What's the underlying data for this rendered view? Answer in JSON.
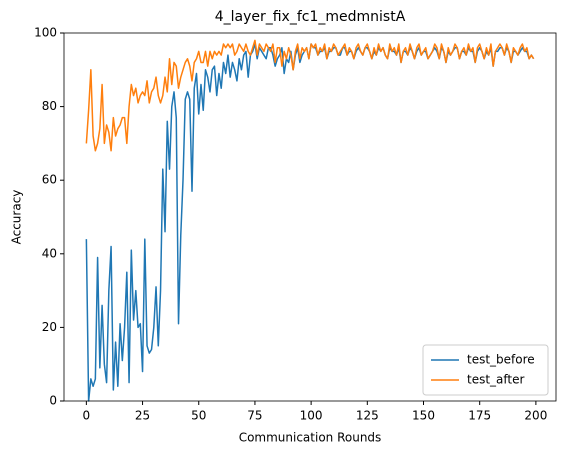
{
  "chart_data": {
    "type": "line",
    "title": "4_layer_fix_fc1_medmnistA",
    "xlabel": "Communication Rounds",
    "ylabel": "Accuracy",
    "x": [
      0,
      1,
      2,
      3,
      4,
      5,
      6,
      7,
      8,
      9,
      10,
      11,
      12,
      13,
      14,
      15,
      16,
      17,
      18,
      19,
      20,
      21,
      22,
      23,
      24,
      25,
      26,
      27,
      28,
      29,
      30,
      31,
      32,
      33,
      34,
      35,
      36,
      37,
      38,
      39,
      40,
      41,
      42,
      43,
      44,
      45,
      46,
      47,
      48,
      49,
      50,
      51,
      52,
      53,
      54,
      55,
      56,
      57,
      58,
      59,
      60,
      61,
      62,
      63,
      64,
      65,
      66,
      67,
      68,
      69,
      70,
      71,
      72,
      73,
      74,
      75,
      76,
      77,
      78,
      79,
      80,
      81,
      82,
      83,
      84,
      85,
      86,
      87,
      88,
      89,
      90,
      91,
      92,
      93,
      94,
      95,
      96,
      97,
      98,
      99,
      100,
      101,
      102,
      103,
      104,
      105,
      106,
      107,
      108,
      109,
      110,
      111,
      112,
      113,
      114,
      115,
      116,
      117,
      118,
      119,
      120,
      121,
      122,
      123,
      124,
      125,
      126,
      127,
      128,
      129,
      130,
      131,
      132,
      133,
      134,
      135,
      136,
      137,
      138,
      139,
      140,
      141,
      142,
      143,
      144,
      145,
      146,
      147,
      148,
      149,
      150,
      151,
      152,
      153,
      154,
      155,
      156,
      157,
      158,
      159,
      160,
      161,
      162,
      163,
      164,
      165,
      166,
      167,
      168,
      169,
      170,
      171,
      172,
      173,
      174,
      175,
      176,
      177,
      178,
      179,
      180,
      181,
      182,
      183,
      184,
      185,
      186,
      187,
      188,
      189,
      190,
      191,
      192,
      193,
      194,
      195,
      196,
      197,
      198,
      199
    ],
    "series": [
      {
        "name": "test_before",
        "color": "#1f77b4",
        "values": [
          44,
          0,
          6,
          4,
          6,
          39,
          9,
          26,
          10,
          5,
          30,
          42,
          3,
          16,
          4,
          21,
          11,
          20,
          35,
          5,
          41,
          22,
          30,
          20,
          21,
          8,
          44,
          15,
          13,
          14,
          20,
          31,
          15,
          30,
          63,
          46,
          76,
          63,
          80,
          84,
          77,
          21,
          45,
          60,
          82,
          84,
          82,
          57,
          85,
          89,
          78,
          86,
          79,
          90,
          88,
          84,
          90,
          91,
          83,
          89,
          85,
          92,
          89,
          94,
          88,
          92,
          90,
          87,
          93,
          90,
          94,
          95,
          88,
          94,
          95,
          97,
          93,
          96,
          95,
          94,
          93,
          96,
          96,
          94,
          91,
          93,
          94,
          96,
          89,
          93,
          92,
          95,
          90,
          94,
          96,
          92,
          94,
          95,
          96,
          93,
          97,
          96,
          96,
          94,
          95,
          95,
          96,
          93,
          95,
          95,
          96,
          96,
          94,
          94,
          96,
          96,
          94,
          95,
          95,
          93,
          95,
          96,
          95,
          94,
          96,
          96,
          95,
          93,
          95,
          94,
          96,
          95,
          96,
          94,
          93,
          96,
          95,
          95,
          94,
          96,
          92,
          95,
          95,
          94,
          96,
          95,
          93,
          95,
          96,
          94,
          95,
          95,
          93,
          94,
          95,
          96,
          95,
          93,
          96,
          95,
          92,
          95,
          94,
          95,
          96,
          96,
          93,
          95,
          95,
          94,
          96,
          95,
          95,
          92,
          95,
          96,
          95,
          93,
          95,
          94,
          96,
          91,
          95,
          95,
          96,
          96,
          94,
          96,
          95,
          92,
          95,
          95,
          94,
          95,
          96,
          95,
          95,
          93,
          94,
          93
        ]
      },
      {
        "name": "test_after",
        "color": "#ff7f0e",
        "values": [
          70,
          79,
          90,
          72,
          68,
          70,
          74,
          86,
          70,
          75,
          73,
          68,
          77,
          72,
          74,
          75,
          77,
          77,
          70,
          80,
          86,
          83,
          85,
          81,
          83,
          84,
          83,
          87,
          81,
          84,
          85,
          88,
          83,
          81,
          83,
          88,
          84,
          93,
          86,
          92,
          91,
          85,
          88,
          90,
          92,
          93,
          91,
          87,
          92,
          93,
          95,
          92,
          92,
          95,
          91,
          95,
          93,
          95,
          94,
          95,
          94,
          97,
          96,
          97,
          96,
          97,
          94,
          95,
          97,
          96,
          95,
          97,
          95,
          94,
          96,
          98,
          94,
          97,
          96,
          95,
          97,
          96,
          95,
          97,
          92,
          96,
          96,
          91,
          95,
          93,
          96,
          94,
          90,
          95,
          97,
          93,
          96,
          95,
          96,
          93,
          97,
          96,
          97,
          94,
          96,
          95,
          97,
          93,
          96,
          95,
          97,
          96,
          94,
          95,
          96,
          97,
          94,
          96,
          95,
          93,
          96,
          97,
          95,
          94,
          96,
          97,
          95,
          93,
          96,
          94,
          97,
          95,
          96,
          94,
          93,
          97,
          95,
          96,
          94,
          97,
          92,
          95,
          96,
          94,
          97,
          95,
          93,
          96,
          97,
          94,
          95,
          96,
          93,
          94,
          95,
          97,
          96,
          93,
          97,
          95,
          92,
          96,
          94,
          95,
          97,
          96,
          93,
          95,
          96,
          94,
          97,
          95,
          96,
          92,
          96,
          97,
          95,
          93,
          96,
          94,
          97,
          91,
          95,
          96,
          97,
          96,
          94,
          97,
          95,
          92,
          96,
          95,
          94,
          96,
          97,
          95,
          96,
          93,
          94,
          93
        ]
      }
    ],
    "xlim": [
      -9.95,
      208.95
    ],
    "xticks": [
      0,
      25,
      50,
      75,
      100,
      125,
      150,
      175,
      200
    ],
    "ylim": [
      0,
      100
    ],
    "yticks": [
      0,
      20,
      40,
      60,
      80,
      100
    ],
    "grid": false,
    "legend": "lower right"
  }
}
